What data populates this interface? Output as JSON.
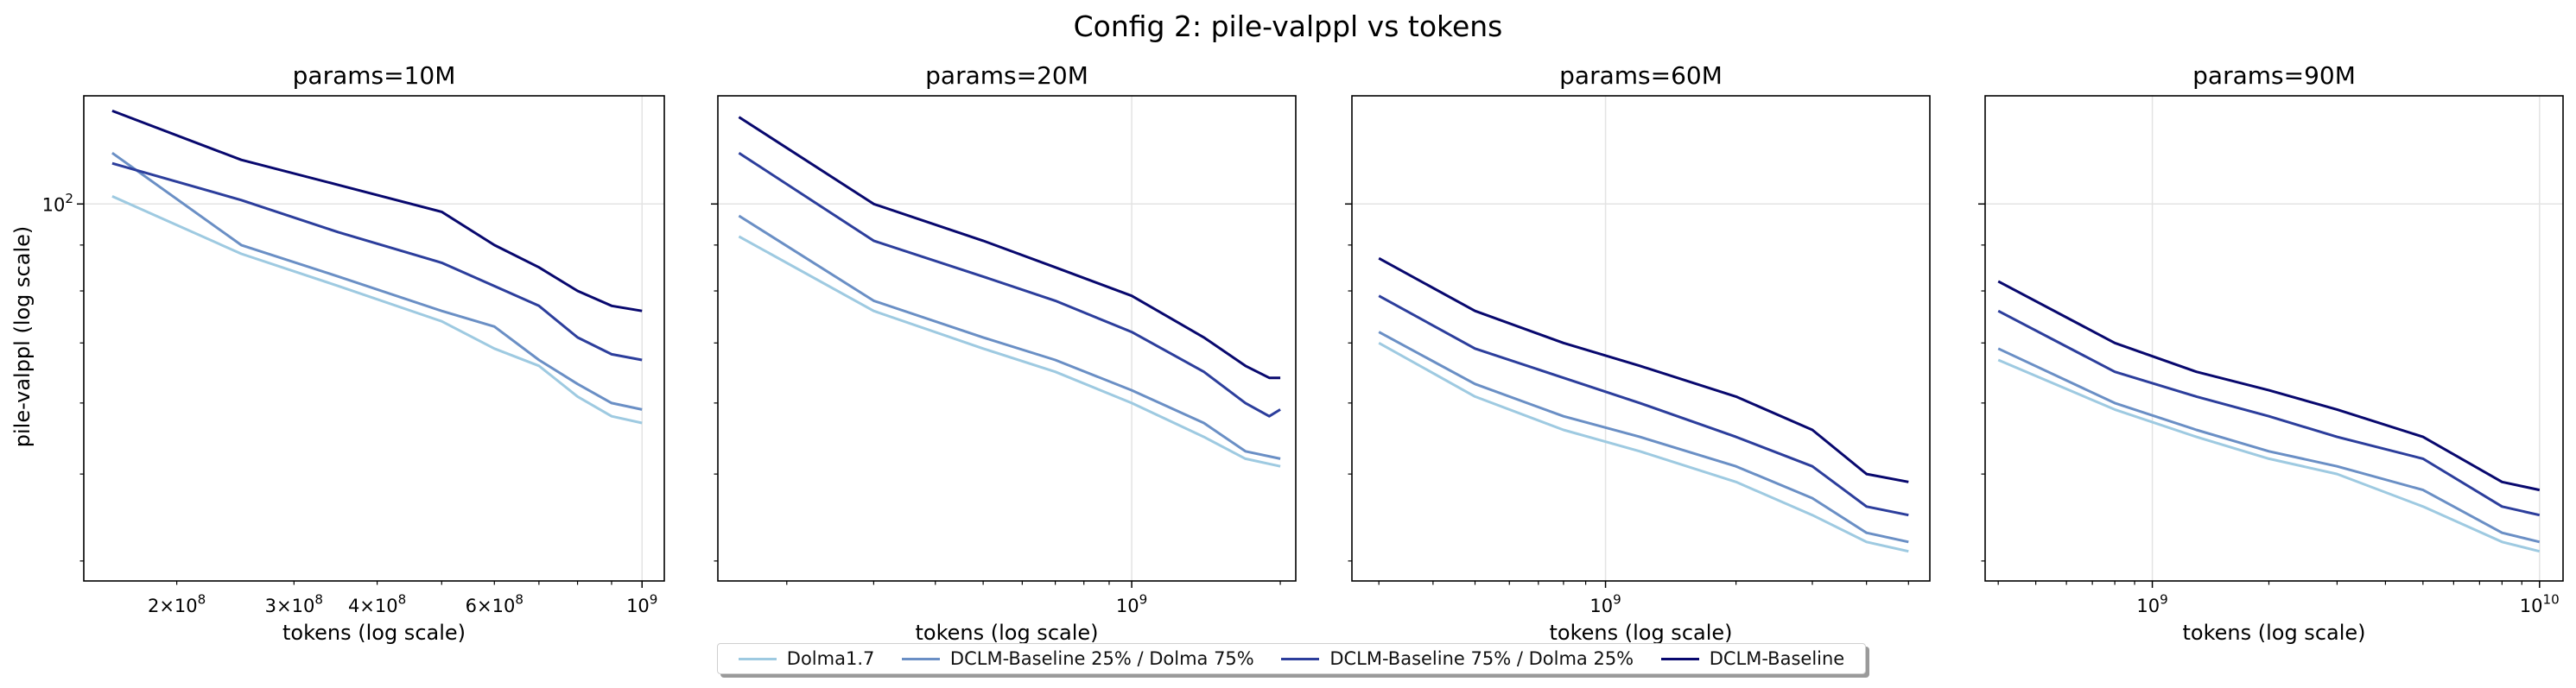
{
  "suptitle": "Config 2: pile-valppl vs tokens",
  "colors": {
    "Dolma1.7": "#9ecae1",
    "DCLM-Baseline 25% / Dolma 75%": "#6a8fc5",
    "DCLM-Baseline 75% / Dolma 25%": "#2c3e9c",
    "DCLM-Baseline": "#08086e"
  },
  "legend": [
    "Dolma1.7",
    "DCLM-Baseline 25% / Dolma 75%",
    "DCLM-Baseline 75% / Dolma 25%",
    "DCLM-Baseline"
  ],
  "shared_ylabel": "pile-valppl (log scale)",
  "chart_data": [
    {
      "type": "line",
      "title": "params=10M",
      "xlabel": "tokens (log scale)",
      "ylabel": "pile-valppl (log scale)",
      "xscale": "log",
      "yscale": "log",
      "xlim": [
        145000000.0,
        1080000000.0
      ],
      "ylim": [
        38,
        132
      ],
      "grid": true,
      "xticks_major": [
        {
          "value": 1000000000.0,
          "label": "10^9"
        }
      ],
      "xticks_minor_labeled": [
        {
          "value": 200000000.0,
          "label": "2×10^8"
        },
        {
          "value": 300000000.0,
          "label": "3×10^8"
        },
        {
          "value": 400000000.0,
          "label": "4×10^8"
        },
        {
          "value": 600000000.0,
          "label": "6×10^8"
        }
      ],
      "yticks": [
        {
          "value": 100,
          "label": "10^2"
        }
      ],
      "series": [
        {
          "name": "Dolma1.7",
          "x": [
            160000000.0,
            250000000.0,
            350000000.0,
            500000000.0,
            600000000.0,
            700000000.0,
            800000000.0,
            900000000.0,
            1000000000.0
          ],
          "y": [
            102,
            88,
            81,
            74,
            69,
            66,
            61,
            58,
            57
          ]
        },
        {
          "name": "DCLM-Baseline 25% / Dolma 75%",
          "x": [
            160000000.0,
            250000000.0,
            350000000.0,
            500000000.0,
            600000000.0,
            700000000.0,
            800000000.0,
            900000000.0,
            1000000000.0
          ],
          "y": [
            114,
            90,
            83,
            76,
            73,
            67,
            63,
            60,
            59
          ]
        },
        {
          "name": "DCLM-Baseline 75% / Dolma 25%",
          "x": [
            160000000.0,
            250000000.0,
            350000000.0,
            500000000.0,
            600000000.0,
            700000000.0,
            800000000.0,
            900000000.0,
            1000000000.0
          ],
          "y": [
            111,
            101,
            93,
            86,
            81,
            77,
            71,
            68,
            67
          ]
        },
        {
          "name": "DCLM-Baseline",
          "x": [
            160000000.0,
            250000000.0,
            350000000.0,
            500000000.0,
            600000000.0,
            700000000.0,
            800000000.0,
            900000000.0,
            1000000000.0
          ],
          "y": [
            127,
            112,
            105,
            98,
            90,
            85,
            80,
            77,
            76
          ]
        }
      ]
    },
    {
      "type": "line",
      "title": "params=20M",
      "xlabel": "tokens (log scale)",
      "xscale": "log",
      "yscale": "log",
      "xlim": [
        145000000.0,
        2150000000.0
      ],
      "ylim": [
        38,
        132
      ],
      "grid": true,
      "xticks_major": [
        {
          "value": 1000000000.0,
          "label": "10^9"
        }
      ],
      "series": [
        {
          "name": "Dolma1.7",
          "x": [
            160000000.0,
            300000000.0,
            500000000.0,
            700000000.0,
            1000000000.0,
            1400000000.0,
            1700000000.0,
            2000000000.0
          ],
          "y": [
            92,
            76,
            69,
            65,
            60,
            55,
            52,
            51
          ]
        },
        {
          "name": "DCLM-Baseline 25% / Dolma 75%",
          "x": [
            160000000.0,
            300000000.0,
            500000000.0,
            700000000.0,
            1000000000.0,
            1400000000.0,
            1700000000.0,
            2000000000.0
          ],
          "y": [
            97,
            78,
            71,
            67,
            62,
            57,
            53,
            52
          ]
        },
        {
          "name": "DCLM-Baseline 75% / Dolma 25%",
          "x": [
            160000000.0,
            300000000.0,
            500000000.0,
            700000000.0,
            1000000000.0,
            1400000000.0,
            1700000000.0,
            1900000000.0,
            2000000000.0
          ],
          "y": [
            114,
            91,
            83,
            78,
            72,
            65,
            60,
            58,
            59
          ]
        },
        {
          "name": "DCLM-Baseline",
          "x": [
            160000000.0,
            300000000.0,
            500000000.0,
            700000000.0,
            1000000000.0,
            1400000000.0,
            1700000000.0,
            1900000000.0,
            2000000000.0
          ],
          "y": [
            125,
            100,
            91,
            85,
            79,
            71,
            66,
            64,
            64
          ]
        }
      ]
    },
    {
      "type": "line",
      "title": "params=60M",
      "xlabel": "tokens (log scale)",
      "xscale": "log",
      "yscale": "log",
      "xlim": [
        260000000.0,
        5600000000.0
      ],
      "ylim": [
        38,
        132
      ],
      "grid": true,
      "xticks_major": [
        {
          "value": 1000000000.0,
          "label": "10^9"
        }
      ],
      "series": [
        {
          "name": "Dolma1.7",
          "x": [
            300000000.0,
            500000000.0,
            800000000.0,
            1200000000.0,
            2000000000.0,
            3000000000.0,
            4000000000.0,
            5000000000.0
          ],
          "y": [
            70,
            61,
            56,
            53,
            49,
            45,
            42,
            41
          ]
        },
        {
          "name": "DCLM-Baseline 25% / Dolma 75%",
          "x": [
            300000000.0,
            500000000.0,
            800000000.0,
            1200000000.0,
            2000000000.0,
            3000000000.0,
            4000000000.0,
            5000000000.0
          ],
          "y": [
            72,
            63,
            58,
            55,
            51,
            47,
            43,
            42
          ]
        },
        {
          "name": "DCLM-Baseline 75% / Dolma 25%",
          "x": [
            300000000.0,
            500000000.0,
            800000000.0,
            1200000000.0,
            2000000000.0,
            3000000000.0,
            4000000000.0,
            5000000000.0
          ],
          "y": [
            79,
            69,
            64,
            60,
            55,
            51,
            46,
            45
          ]
        },
        {
          "name": "DCLM-Baseline",
          "x": [
            300000000.0,
            500000000.0,
            800000000.0,
            1200000000.0,
            2000000000.0,
            3000000000.0,
            4000000000.0,
            5000000000.0
          ],
          "y": [
            87,
            76,
            70,
            66,
            61,
            56,
            50,
            49
          ]
        }
      ]
    },
    {
      "type": "line",
      "title": "params=90M",
      "xlabel": "tokens (log scale)",
      "xscale": "log",
      "yscale": "log",
      "xlim": [
        370000000.0,
        11500000000.0
      ],
      "ylim": [
        38,
        132
      ],
      "grid": true,
      "xticks_major": [
        {
          "value": 1000000000.0,
          "label": "10^9"
        },
        {
          "value": 10000000000.0,
          "label": "10^10"
        }
      ],
      "series": [
        {
          "name": "Dolma1.7",
          "x": [
            400000000.0,
            800000000.0,
            1300000000.0,
            2000000000.0,
            3000000000.0,
            5000000000.0,
            8000000000.0,
            10000000000.0
          ],
          "y": [
            67,
            59,
            55,
            52,
            50,
            46,
            42,
            41
          ]
        },
        {
          "name": "DCLM-Baseline 25% / Dolma 75%",
          "x": [
            400000000.0,
            800000000.0,
            1300000000.0,
            2000000000.0,
            3000000000.0,
            5000000000.0,
            8000000000.0,
            10000000000.0
          ],
          "y": [
            69,
            60,
            56,
            53,
            51,
            48,
            43,
            42
          ]
        },
        {
          "name": "DCLM-Baseline 75% / Dolma 25%",
          "x": [
            400000000.0,
            800000000.0,
            1300000000.0,
            2000000000.0,
            3000000000.0,
            5000000000.0,
            8000000000.0,
            10000000000.0
          ],
          "y": [
            76,
            65,
            61,
            58,
            55,
            52,
            46,
            45
          ]
        },
        {
          "name": "DCLM-Baseline",
          "x": [
            400000000.0,
            800000000.0,
            1300000000.0,
            2000000000.0,
            3000000000.0,
            5000000000.0,
            8000000000.0,
            10000000000.0
          ],
          "y": [
            82,
            70,
            65,
            62,
            59,
            55,
            49,
            48
          ]
        }
      ]
    }
  ]
}
